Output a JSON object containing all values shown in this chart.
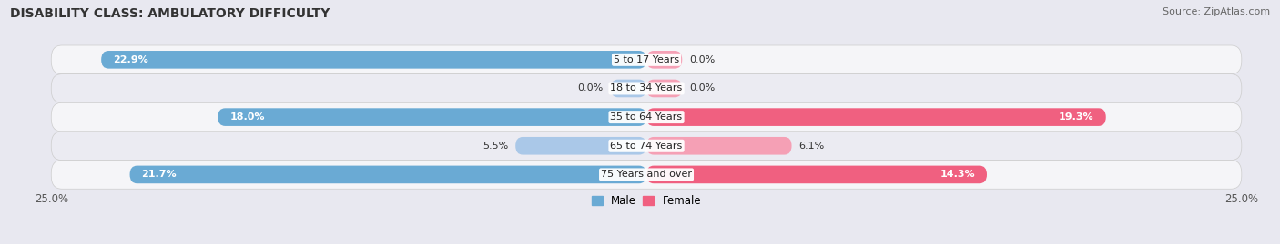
{
  "title": "DISABILITY CLASS: AMBULATORY DIFFICULTY",
  "source": "Source: ZipAtlas.com",
  "categories": [
    "5 to 17 Years",
    "18 to 34 Years",
    "35 to 64 Years",
    "65 to 74 Years",
    "75 Years and over"
  ],
  "male_values": [
    22.9,
    0.0,
    18.0,
    5.5,
    21.7
  ],
  "female_values": [
    0.0,
    0.0,
    19.3,
    6.1,
    14.3
  ],
  "male_color_light": "#aac8e8",
  "male_color_dark": "#6aaad4",
  "female_color_light": "#f5a0b5",
  "female_color_dark": "#f06080",
  "male_label": "Male",
  "female_label": "Female",
  "xlim": 25.0,
  "bar_height": 0.62,
  "background_color": "#e8e8f0",
  "row_bg_color": "#f5f5f8",
  "row_alt_color": "#ebebf2",
  "title_fontsize": 10,
  "label_fontsize": 8,
  "tick_fontsize": 8.5,
  "source_fontsize": 8
}
